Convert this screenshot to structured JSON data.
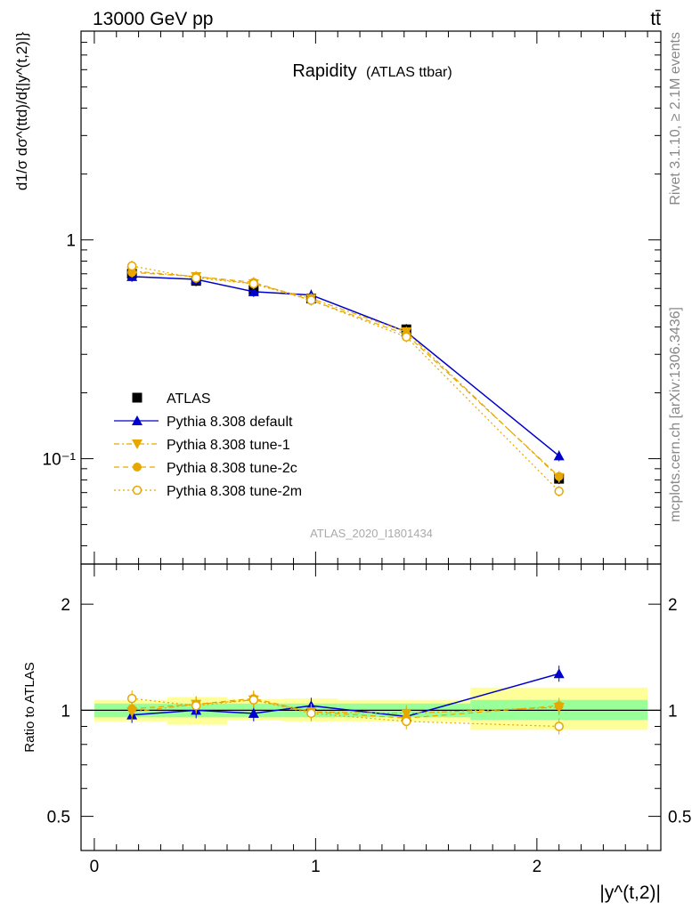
{
  "header": {
    "energy_label": "13000 GeV pp",
    "process_label": "tt̄"
  },
  "side_labels": {
    "rivet": "Rivet 3.1.10, ≥ 2.1M events",
    "mcplots": "mcplots.cern.ch [arXiv:1306.3436]"
  },
  "colors": {
    "atlas": "#000000",
    "default": "#0000cc",
    "tune": "#e6a800",
    "band_inner": "#99ff99",
    "band_outer": "#ffff99"
  },
  "chart_data": [
    {
      "type": "line",
      "title": "Rapidity",
      "subtitle": "(ATLAS ttbar)",
      "analysis_id": "ATLAS_2020_I1801434",
      "ylabel": "d1/σ dσ^(ttd)/d{|y^(t,2)|}",
      "y_scale": "log",
      "xlim": [
        -0.06,
        2.56
      ],
      "ylim": [
        0.033,
        9.0
      ],
      "y_tick_labels": [
        {
          "value": 0.1,
          "label": "10⁻¹"
        },
        {
          "value": 1,
          "label": "1"
        }
      ],
      "legend_position": "lower-left",
      "x": [
        0.17,
        0.46,
        0.72,
        0.98,
        1.41,
        2.1
      ],
      "series": [
        {
          "name": "ATLAS",
          "values": [
            0.7,
            0.65,
            0.59,
            0.54,
            0.39,
            0.081
          ],
          "marker": "square",
          "line": "none"
        },
        {
          "name": "Pythia 8.308 default",
          "values": [
            0.68,
            0.66,
            0.58,
            0.56,
            0.38,
            0.103
          ],
          "marker": "triangle-up",
          "line": "solid"
        },
        {
          "name": "Pythia 8.308 tune-1",
          "values": [
            0.72,
            0.68,
            0.63,
            0.54,
            0.38,
            0.082
          ],
          "marker": "triangle-down",
          "line": "dashdot"
        },
        {
          "name": "Pythia 8.308 tune-2c",
          "values": [
            0.71,
            0.68,
            0.64,
            0.53,
            0.37,
            0.083
          ],
          "marker": "circle",
          "line": "dashed"
        },
        {
          "name": "Pythia 8.308 tune-2m",
          "values": [
            0.76,
            0.67,
            0.63,
            0.53,
            0.36,
            0.071
          ],
          "marker": "open-circle",
          "line": "dotted"
        }
      ]
    },
    {
      "type": "line",
      "ylabel": "Ratio to ATLAS",
      "xlabel": "|y^(t,2)|",
      "y_scale": "log",
      "xlim": [
        -0.06,
        2.56
      ],
      "ylim": [
        0.4,
        2.6
      ],
      "x_ticks": [
        0,
        1,
        2
      ],
      "y_tick_labels": [
        {
          "value": 0.5,
          "label": "0.5"
        },
        {
          "value": 1,
          "label": "1"
        },
        {
          "value": 2,
          "label": "2"
        }
      ],
      "x": [
        0.17,
        0.46,
        0.72,
        0.98,
        1.41,
        2.1
      ],
      "bins": [
        {
          "low": 0.0,
          "high": 0.33,
          "inner": [
            0.955,
            1.045
          ],
          "outer": [
            0.93,
            1.07
          ]
        },
        {
          "low": 0.33,
          "high": 0.6,
          "inner": [
            0.955,
            1.045
          ],
          "outer": [
            0.91,
            1.09
          ]
        },
        {
          "low": 0.6,
          "high": 0.85,
          "inner": [
            0.955,
            1.045
          ],
          "outer": [
            0.935,
            1.075
          ]
        },
        {
          "low": 0.85,
          "high": 1.1,
          "inner": [
            0.955,
            1.045
          ],
          "outer": [
            0.93,
            1.08
          ]
        },
        {
          "low": 1.1,
          "high": 1.7,
          "inner": [
            0.955,
            1.045
          ],
          "outer": [
            0.93,
            1.07
          ]
        },
        {
          "low": 1.7,
          "high": 2.5,
          "inner": [
            0.94,
            1.07
          ],
          "outer": [
            0.88,
            1.16
          ]
        }
      ],
      "series": [
        {
          "name": "Pythia 8.308 default",
          "values": [
            0.97,
            1.0,
            0.98,
            1.03,
            0.96,
            1.27
          ]
        },
        {
          "name": "Pythia 8.308 tune-1",
          "values": [
            0.99,
            1.04,
            1.07,
            0.99,
            0.98,
            1.02
          ]
        },
        {
          "name": "Pythia 8.308 tune-2c",
          "values": [
            1.01,
            1.04,
            1.08,
            0.99,
            0.95,
            1.03
          ]
        },
        {
          "name": "Pythia 8.308 tune-2m",
          "values": [
            1.08,
            1.03,
            1.07,
            0.98,
            0.93,
            0.9
          ]
        }
      ]
    }
  ]
}
